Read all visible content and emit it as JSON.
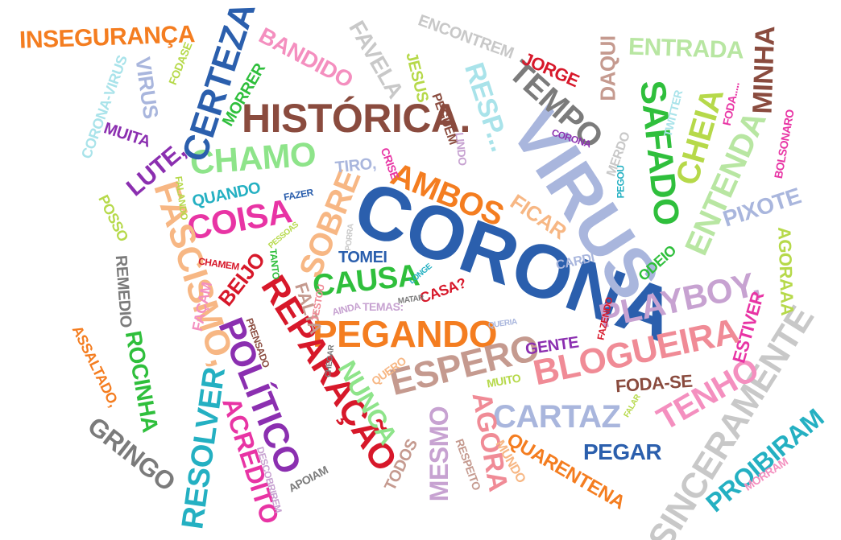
{
  "words": [
    {
      "text": "CORONA",
      "color": "#2b5fad"
    },
    {
      "text": "VIRUS",
      "color": "#a9b6dd"
    },
    {
      "text": "HISTÓRICA.",
      "color": "#8a4b3e"
    },
    {
      "text": "PEGANDO",
      "color": "#f47d20"
    },
    {
      "text": "REPARAÇÃO",
      "color": "#d7182a"
    },
    {
      "text": "POLÍTICO",
      "color": "#8b2fb0"
    },
    {
      "text": "BLOGUEIRA",
      "color": "#f08b96"
    },
    {
      "text": "PLAYBOY,",
      "color": "#c7a2d1"
    },
    {
      "text": "ESPERO",
      "color": "#c59a8f"
    },
    {
      "text": "CARTAZ",
      "color": "#a9b6dd"
    },
    {
      "text": "SINCERAMENTE",
      "color": "#c8c8c8"
    },
    {
      "text": "TENHO",
      "color": "#f48fbf"
    },
    {
      "text": "SOBRE",
      "color": "#f7b784"
    },
    {
      "text": "COISA",
      "color": "#e834a4"
    },
    {
      "text": "CHAMO",
      "color": "#8ee48a"
    },
    {
      "text": "CERTEZA",
      "color": "#2b5fad"
    },
    {
      "text": "FASCISMO,",
      "color": "#f7b784"
    },
    {
      "text": "SAFADO",
      "color": "#2fbf3c"
    },
    {
      "text": "TEMPO",
      "color": "#7b7b7b"
    },
    {
      "text": "AMBOS",
      "color": "#f47d20"
    },
    {
      "text": "CAUSA",
      "color": "#2fbf3c"
    },
    {
      "text": "RESOLVER",
      "color": "#24b0c2"
    },
    {
      "text": "ACREDITO",
      "color": "#e834a4"
    },
    {
      "text": "NUNCA",
      "color": "#8ee48a"
    },
    {
      "text": "AGORA",
      "color": "#f08b96"
    },
    {
      "text": "MESMO",
      "color": "#c7a2d1"
    },
    {
      "text": "GRINGO",
      "color": "#7b7b7b"
    },
    {
      "text": "PROIBIRAM",
      "color": "#24b0c2"
    },
    {
      "text": "QUARENTENA",
      "color": "#f47d20"
    },
    {
      "text": "PEGAR",
      "color": "#2b5fad"
    },
    {
      "text": "ENTENDA",
      "color": "#b8e6a2"
    },
    {
      "text": "CHEIA",
      "color": "#b6d94a"
    },
    {
      "text": "MINHA",
      "color": "#8a4b3e"
    },
    {
      "text": "ENTRADA",
      "color": "#b8e6a2"
    },
    {
      "text": "PIXOTE",
      "color": "#a9b6dd"
    },
    {
      "text": "AGORAAA",
      "color": "#b6d94a"
    },
    {
      "text": "ESTIVER",
      "color": "#e834a4"
    },
    {
      "text": "FODA-SE",
      "color": "#8a4b3e"
    },
    {
      "text": "GENTE",
      "color": "#8b2fb0"
    },
    {
      "text": "MUITO",
      "color": "#b6d94a"
    },
    {
      "text": "FICAR",
      "color": "#f7b784"
    },
    {
      "text": "ODEIO",
      "color": "#2fbf3c"
    },
    {
      "text": "CARDI",
      "color": "#a9b6dd"
    },
    {
      "text": "TOMEI",
      "color": "#2b5fad"
    },
    {
      "text": "CASA?",
      "color": "#d7182a"
    },
    {
      "text": "FALTA",
      "color": "#c59a8f"
    },
    {
      "text": "BEIJO",
      "color": "#d7182a"
    },
    {
      "text": "QUANDO",
      "color": "#24b0c2"
    },
    {
      "text": "LUTE,",
      "color": "#8b2fb0"
    },
    {
      "text": "MUITA",
      "color": "#8b2fb0"
    },
    {
      "text": "MORRER",
      "color": "#2fbf3c"
    },
    {
      "text": "BANDIDO",
      "color": "#f48fbf"
    },
    {
      "text": "FAVELA",
      "color": "#c8c8c8"
    },
    {
      "text": "JESUS",
      "color": "#b6d94a"
    },
    {
      "text": "ENCONTREM",
      "color": "#c8c8c8"
    },
    {
      "text": "JORGE",
      "color": "#d7182a"
    },
    {
      "text": "DAQUI",
      "color": "#c59a8f"
    },
    {
      "text": "INSEGURANÇA",
      "color": "#f47d20"
    },
    {
      "text": "VIRUS",
      "color": "#a9b6dd"
    },
    {
      "text": "CORONA-VIRUS",
      "color": "#a9e3ea"
    },
    {
      "text": "FODASE",
      "color": "#b6d94a"
    },
    {
      "text": "RESP...",
      "color": "#a9e3ea"
    },
    {
      "text": "PEGUEM",
      "color": "#8a4b3e"
    },
    {
      "text": "LINDO",
      "color": "#c7a2d1"
    },
    {
      "text": "CRISE",
      "color": "#e834a4"
    },
    {
      "text": "TIRO,",
      "color": "#a9b6dd"
    },
    {
      "text": "CORONA",
      "color": "#8b2fb0"
    },
    {
      "text": "MERDO",
      "color": "#c8c8c8"
    },
    {
      "text": "PEGOU",
      "color": "#24b0c2"
    },
    {
      "text": "TWITTER",
      "color": "#a9e3ea"
    },
    {
      "text": "FODA.....",
      "color": "#e834a4"
    },
    {
      "text": "BOLSONARO",
      "color": "#e834a4"
    },
    {
      "text": "POSSO",
      "color": "#b6d94a"
    },
    {
      "text": "FALANDO",
      "color": "#b6d94a"
    },
    {
      "text": "FAZER",
      "color": "#2b5fad"
    },
    {
      "text": "PESSOAS",
      "color": "#b6d94a"
    },
    {
      "text": "REMEDIO",
      "color": "#7b7b7b"
    },
    {
      "text": "CHAMEM",
      "color": "#d7182a"
    },
    {
      "text": "FAÇAM",
      "color": "#f48fbf"
    },
    {
      "text": "TANTO",
      "color": "#2fbf3c"
    },
    {
      "text": "TESTOU",
      "color": "#f08b96"
    },
    {
      "text": "AINDA",
      "color": "#c7a2d1"
    },
    {
      "text": "TEMAS:",
      "color": "#c7a2d1"
    },
    {
      "text": "MATAR",
      "color": "#7b7b7b"
    },
    {
      "text": "LONGE",
      "color": "#24b0c2"
    },
    {
      "text": "PORRA",
      "color": "#c8c8c8"
    },
    {
      "text": "QUERIA",
      "color": "#a9b6dd"
    },
    {
      "text": "FAZENDO",
      "color": "#d7182a"
    },
    {
      "text": "ROCINHA",
      "color": "#2fbf3c"
    },
    {
      "text": "ASSALTADO,",
      "color": "#f47d20"
    },
    {
      "text": "PRENSADO",
      "color": "#8a4b3e"
    },
    {
      "text": "CHEGAR",
      "color": "#7b7b7b"
    },
    {
      "text": "QUERO",
      "color": "#f7b784"
    },
    {
      "text": "TODOS",
      "color": "#c59a8f"
    },
    {
      "text": "DESCOBRIREM",
      "color": "#c7a2d1"
    },
    {
      "text": "APOIAM",
      "color": "#7b7b7b"
    },
    {
      "text": "RESPEITO",
      "color": "#c59a8f"
    },
    {
      "text": "MUNDO",
      "color": "#f7b784"
    },
    {
      "text": "FALAR",
      "color": "#b6d94a"
    },
    {
      "text": "MORRAM",
      "color": "#f48fbf"
    }
  ]
}
